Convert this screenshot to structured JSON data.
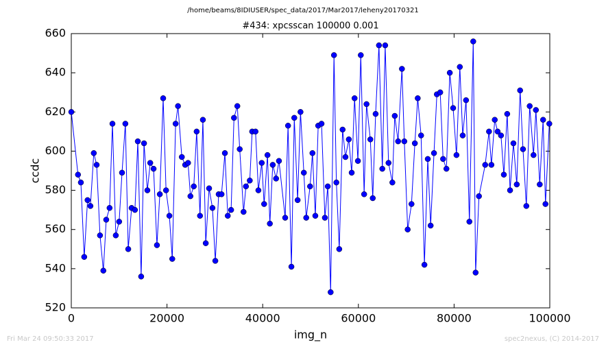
{
  "chart_data": {
    "type": "line",
    "suptitle": "/home/beams/8IDIUSER/spec_data/2017/Mar2017/leheny20170321",
    "title": "#434: xpcsscan 100000 0.001",
    "xlabel": "img_n",
    "ylabel": "ccdc",
    "footer_left": "Fri Mar 24 09:50:33 2017",
    "footer_right": "spec2nexus, (C) 2014-2017",
    "xlim": [
      0,
      100000
    ],
    "ylim": [
      520,
      660
    ],
    "xticks": [
      0,
      20000,
      40000,
      60000,
      80000,
      100000
    ],
    "yticks": [
      520,
      540,
      560,
      580,
      600,
      620,
      640,
      660
    ],
    "color": "#0000ff",
    "x": [
      0,
      1400,
      2000,
      2700,
      3400,
      4000,
      4700,
      5300,
      6000,
      6700,
      7300,
      8000,
      8600,
      9300,
      10000,
      10600,
      11300,
      11900,
      12600,
      13300,
      13900,
      14600,
      15200,
      15900,
      16500,
      17200,
      17900,
      18500,
      19200,
      19800,
      20500,
      21100,
      21800,
      22300,
      23100,
      23800,
      24400,
      24900,
      25600,
      26200,
      26900,
      27500,
      28100,
      28800,
      29500,
      30100,
      30800,
      31400,
      32100,
      32700,
      33400,
      34000,
      34700,
      35200,
      36000,
      36500,
      37300,
      37800,
      38500,
      39100,
      39800,
      40300,
      41000,
      41500,
      42100,
      42800,
      43400,
      44700,
      45300,
      46000,
      46600,
      47300,
      47900,
      48600,
      49100,
      49900,
      50400,
      51000,
      51600,
      52300,
      53000,
      53600,
      54200,
      54900,
      55400,
      56000,
      56700,
      57300,
      58000,
      58600,
      59200,
      59900,
      60500,
      61200,
      61700,
      62500,
      63000,
      63600,
      64300,
      65000,
      65600,
      66300,
      67100,
      67600,
      68300,
      69100,
      69600,
      70300,
      71100,
      71800,
      72400,
      73100,
      73800,
      74500,
      75100,
      75800,
      76400,
      77100,
      77700,
      78400,
      79100,
      79800,
      80500,
      81200,
      81800,
      82500,
      83200,
      84000,
      84500,
      85200,
      86500,
      87300,
      87800,
      88500,
      89100,
      89800,
      90400,
      91100,
      91700,
      92400,
      93100,
      93800,
      94400,
      95100,
      95800,
      96600,
      97100,
      97900,
      98600,
      99100,
      99900
    ],
    "values": [
      620,
      588,
      584,
      546,
      575,
      572,
      599,
      593,
      557,
      539,
      565,
      571,
      614,
      557,
      564,
      589,
      614,
      550,
      571,
      570,
      605,
      536,
      604,
      580,
      594,
      591,
      552,
      578,
      627,
      580,
      567,
      545,
      614,
      623,
      597,
      593,
      594,
      577,
      582,
      610,
      567,
      616,
      553,
      581,
      571,
      544,
      578,
      578,
      599,
      567,
      570,
      617,
      623,
      601,
      569,
      582,
      585,
      610,
      610,
      580,
      594,
      573,
      598,
      563,
      593,
      586,
      595,
      566,
      613,
      541,
      617,
      575,
      620,
      589,
      566,
      582,
      599,
      567,
      613,
      614,
      566,
      582,
      528,
      649,
      584,
      550,
      611,
      597,
      606,
      589,
      627,
      595,
      649,
      578,
      624,
      606,
      576,
      619,
      654,
      591,
      654,
      594,
      584,
      618,
      605,
      642,
      605,
      560,
      573,
      604,
      627,
      608,
      542,
      596,
      562,
      599,
      629,
      630,
      596,
      591,
      640,
      622,
      598,
      643,
      608,
      626,
      564,
      656,
      538,
      577,
      593,
      610,
      593,
      616,
      610,
      608,
      588,
      619,
      580,
      604,
      583,
      631,
      601,
      572,
      623,
      598,
      621,
      583,
      616,
      573,
      614
    ]
  }
}
